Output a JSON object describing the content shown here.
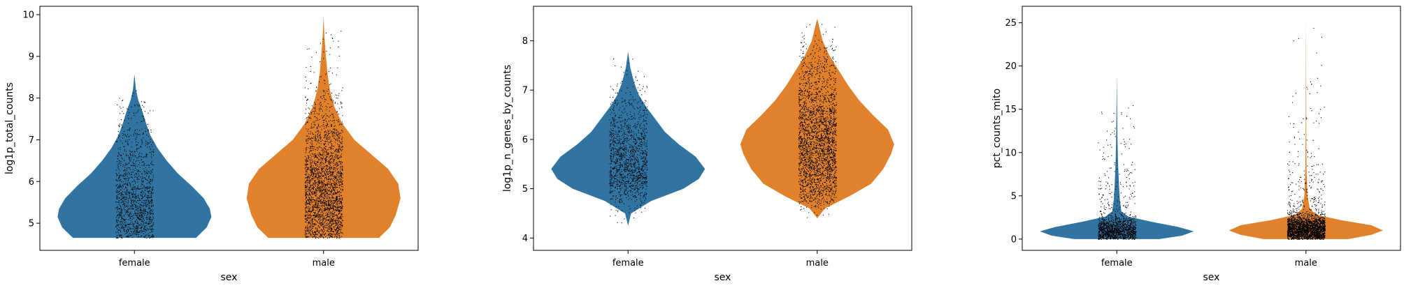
{
  "chart_data": [
    {
      "type": "violin",
      "xlabel": "sex",
      "ylabel": "log1p_total_counts",
      "categories": [
        "female",
        "male"
      ],
      "colors": [
        "#3274a1",
        "#e1812c"
      ],
      "ylim": [
        4.35,
        10.2
      ],
      "yticks": [
        5,
        6,
        7,
        8,
        9,
        10
      ],
      "grid": false,
      "series": [
        {
          "category": "female",
          "min": 4.65,
          "max": 8.57,
          "density": [
            [
              4.65,
              0.8
            ],
            [
              4.9,
              0.94
            ],
            [
              5.15,
              1.0
            ],
            [
              5.35,
              0.98
            ],
            [
              5.6,
              0.9
            ],
            [
              5.9,
              0.74
            ],
            [
              6.2,
              0.56
            ],
            [
              6.5,
              0.42
            ],
            [
              6.8,
              0.3
            ],
            [
              7.1,
              0.21
            ],
            [
              7.4,
              0.15
            ],
            [
              7.7,
              0.1
            ],
            [
              7.95,
              0.05
            ],
            [
              8.2,
              0.02
            ],
            [
              8.57,
              0.0
            ]
          ]
        },
        {
          "category": "male",
          "min": 4.65,
          "max": 9.97,
          "density": [
            [
              4.65,
              0.72
            ],
            [
              4.9,
              0.86
            ],
            [
              5.2,
              0.94
            ],
            [
              5.6,
              1.0
            ],
            [
              5.95,
              0.97
            ],
            [
              6.3,
              0.84
            ],
            [
              6.65,
              0.62
            ],
            [
              7.0,
              0.4
            ],
            [
              7.4,
              0.24
            ],
            [
              7.8,
              0.14
            ],
            [
              8.2,
              0.08
            ],
            [
              8.6,
              0.05
            ],
            [
              9.0,
              0.03
            ],
            [
              9.5,
              0.01
            ],
            [
              9.97,
              0.0
            ]
          ]
        }
      ]
    },
    {
      "type": "violin",
      "xlabel": "sex",
      "ylabel": "log1p_n_genes_by_counts",
      "categories": [
        "female",
        "male"
      ],
      "colors": [
        "#3274a1",
        "#e1812c"
      ],
      "ylim": [
        3.75,
        8.7
      ],
      "yticks": [
        4,
        5,
        6,
        7,
        8
      ],
      "grid": false,
      "series": [
        {
          "category": "female",
          "min": 4.25,
          "max": 7.78,
          "density": [
            [
              4.25,
              0.0
            ],
            [
              4.5,
              0.04
            ],
            [
              4.75,
              0.3
            ],
            [
              5.0,
              0.72
            ],
            [
              5.2,
              0.92
            ],
            [
              5.4,
              1.0
            ],
            [
              5.65,
              0.88
            ],
            [
              5.9,
              0.66
            ],
            [
              6.15,
              0.48
            ],
            [
              6.4,
              0.36
            ],
            [
              6.65,
              0.24
            ],
            [
              6.9,
              0.14
            ],
            [
              7.15,
              0.08
            ],
            [
              7.45,
              0.03
            ],
            [
              7.78,
              0.0
            ]
          ]
        },
        {
          "category": "male",
          "min": 4.4,
          "max": 8.45,
          "density": [
            [
              4.4,
              0.0
            ],
            [
              4.6,
              0.1
            ],
            [
              4.85,
              0.42
            ],
            [
              5.1,
              0.7
            ],
            [
              5.4,
              0.86
            ],
            [
              5.7,
              0.96
            ],
            [
              5.9,
              1.0
            ],
            [
              6.2,
              0.92
            ],
            [
              6.5,
              0.72
            ],
            [
              6.8,
              0.54
            ],
            [
              7.1,
              0.4
            ],
            [
              7.4,
              0.28
            ],
            [
              7.7,
              0.16
            ],
            [
              8.0,
              0.07
            ],
            [
              8.45,
              0.0
            ]
          ]
        }
      ]
    },
    {
      "type": "violin",
      "xlabel": "sex",
      "ylabel": "pct_counts_mito",
      "categories": [
        "female",
        "male"
      ],
      "colors": [
        "#3274a1",
        "#e1812c"
      ],
      "ylim": [
        -1.3,
        26.9
      ],
      "yticks": [
        0,
        5,
        10,
        15,
        20,
        25
      ],
      "grid": false,
      "series": [
        {
          "category": "female",
          "min": 0.0,
          "max": 19.0,
          "density": [
            [
              0.0,
              0.55
            ],
            [
              0.4,
              0.85
            ],
            [
              0.9,
              1.0
            ],
            [
              1.4,
              0.8
            ],
            [
              2.0,
              0.45
            ],
            [
              2.6,
              0.15
            ],
            [
              3.2,
              0.06
            ],
            [
              4.5,
              0.04
            ],
            [
              6.0,
              0.03
            ],
            [
              9.0,
              0.015
            ],
            [
              12.0,
              0.008
            ],
            [
              19.0,
              0.0
            ]
          ]
        },
        {
          "category": "male",
          "min": 0.0,
          "max": 25.6,
          "density": [
            [
              0.0,
              0.55
            ],
            [
              0.5,
              0.85
            ],
            [
              1.0,
              1.0
            ],
            [
              1.6,
              0.85
            ],
            [
              2.2,
              0.45
            ],
            [
              2.8,
              0.14
            ],
            [
              3.5,
              0.05
            ],
            [
              5.0,
              0.02
            ],
            [
              8.0,
              0.008
            ],
            [
              12.0,
              0.004
            ],
            [
              25.6,
              0.0
            ]
          ]
        }
      ]
    }
  ]
}
